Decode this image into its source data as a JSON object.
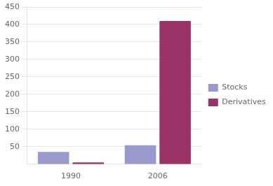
{
  "chart_data": {
    "type": "bar",
    "categories": [
      "1990",
      "2006"
    ],
    "series": [
      {
        "name": "Stocks",
        "color": "#9999cc",
        "values": [
          35,
          54
        ]
      },
      {
        "name": "Derivatives",
        "color": "#993366",
        "values": [
          5,
          410
        ]
      }
    ],
    "ylim": [
      0,
      450
    ],
    "yticks": [
      50,
      100,
      150,
      200,
      250,
      300,
      350,
      400,
      450
    ],
    "grid": true,
    "legend": "right"
  }
}
